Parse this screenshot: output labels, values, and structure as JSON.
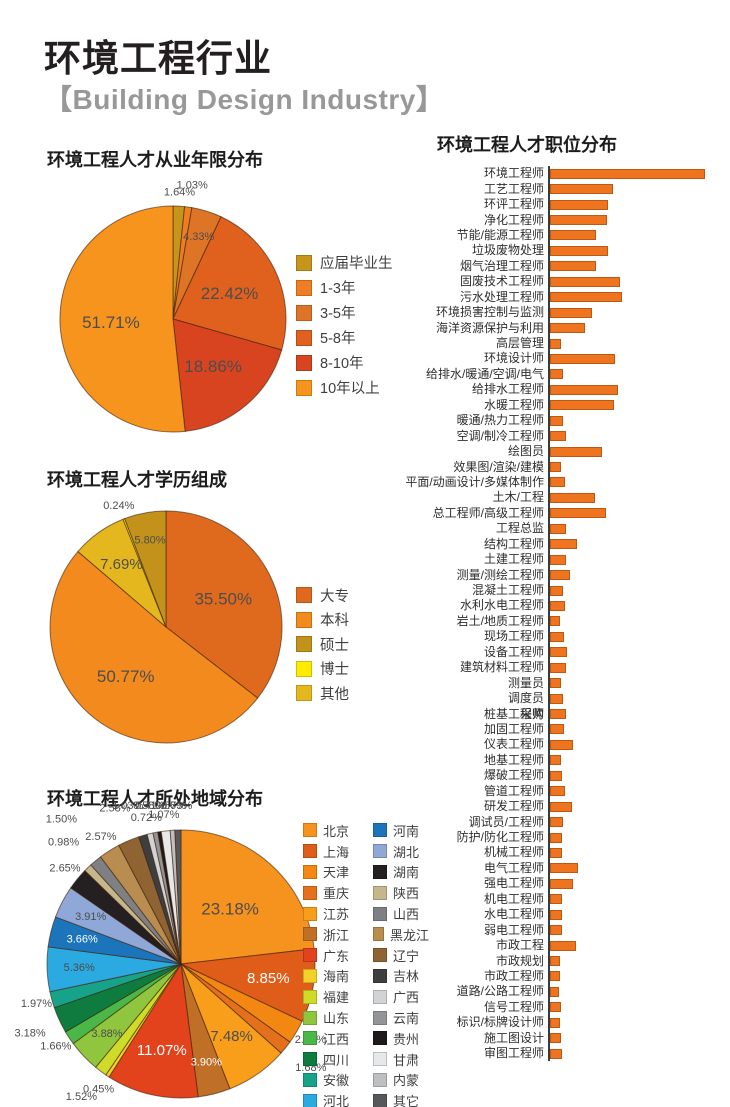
{
  "page": {
    "title": "环境工程行业",
    "subtitle": "【Building Design Industry】"
  },
  "colors": {
    "bar_fill": "#EE7420",
    "bar_border": "#BC5914",
    "axis": "#3A3A3C",
    "label_dark": "#4D4D4F",
    "label_light": "#FFFFFF"
  },
  "chart_data": [
    {
      "id": "experience-pie",
      "type": "pie",
      "title": "环境工程人才从业年限分布",
      "inside_min": 4,
      "inside_label_color_mode": "dark",
      "slices": [
        {
          "label": "应届毕业生",
          "value": 1.64,
          "color": "#C6951C"
        },
        {
          "label": "1-3年",
          "value": 1.03,
          "color": "#F07D23"
        },
        {
          "label": "3-5年",
          "value": 4.33,
          "color": "#DD7426"
        },
        {
          "label": "5-8年",
          "value": 22.42,
          "color": "#E0611E"
        },
        {
          "label": "8-10年",
          "value": 18.86,
          "color": "#D8441F"
        },
        {
          "label": "10年以上",
          "value": 51.71,
          "color": "#F6941E"
        }
      ],
      "legend": [
        {
          "label": "应届毕业生",
          "color": "#C6951C"
        },
        {
          "label": "1-3年",
          "color": "#F07D23"
        },
        {
          "label": "3-5年",
          "color": "#DD7426"
        },
        {
          "label": "5-8年",
          "color": "#E0611E"
        },
        {
          "label": "8-10年",
          "color": "#D8441F"
        },
        {
          "label": "10年以上",
          "color": "#F6941E"
        }
      ]
    },
    {
      "id": "education-pie",
      "type": "pie",
      "title": "环境工程人才学历组成",
      "inside_min": 4,
      "inside_label_color_mode": "dark",
      "slices": [
        {
          "label": "大专",
          "value": 35.5,
          "color": "#DF6A1E"
        },
        {
          "label": "本科",
          "value": 50.77,
          "color": "#F28A1E"
        },
        {
          "label": "其他",
          "value": 7.69,
          "color": "#E5B71E"
        },
        {
          "label": "博士",
          "value": 0.24,
          "color": "#FFEB00"
        },
        {
          "label": "硕士",
          "value": 5.8,
          "color": "#C3921B"
        }
      ],
      "legend": [
        {
          "label": "大专",
          "color": "#DF6A1E"
        },
        {
          "label": "本科",
          "color": "#F28A1E"
        },
        {
          "label": "硕士",
          "color": "#C3921B"
        },
        {
          "label": "博士",
          "color": "#FFEB00"
        },
        {
          "label": "其他",
          "color": "#E5B71E"
        }
      ]
    },
    {
      "id": "region-pie",
      "type": "pie",
      "title": "环境工程人才所处地域分布",
      "inside_min": 3.6,
      "inside_label_color_mode": "auto",
      "slices": [
        {
          "label": "北京",
          "value": 23.18,
          "color": "#F6921E"
        },
        {
          "label": "上海",
          "value": 8.85,
          "color": "#E05C19"
        },
        {
          "label": "天津",
          "value": 2.86,
          "color": "#F28711"
        },
        {
          "label": "重庆",
          "value": 1.68,
          "color": "#E4701C"
        },
        {
          "label": "江苏",
          "value": 7.48,
          "color": "#F89E1B"
        },
        {
          "label": "浙江",
          "value": 3.9,
          "color": "#C06F27"
        },
        {
          "label": "广东",
          "value": 11.07,
          "color": "#E2431C"
        },
        {
          "label": "海南",
          "value": 0.45,
          "color": "#F2D129"
        },
        {
          "label": "福建",
          "value": 1.52,
          "color": "#CEDB28"
        },
        {
          "label": "山东",
          "value": 3.88,
          "color": "#8FC63E"
        },
        {
          "label": "江西",
          "value": 1.66,
          "color": "#4BB748"
        },
        {
          "label": "四川",
          "value": 3.18,
          "color": "#0E7C3F"
        },
        {
          "label": "安徽",
          "value": 1.97,
          "color": "#17A28A"
        },
        {
          "label": "河北",
          "value": 5.36,
          "color": "#2BA9E1"
        },
        {
          "label": "河南",
          "value": 3.66,
          "color": "#1C75BB"
        },
        {
          "label": "湖北",
          "value": 3.91,
          "color": "#8FA8D8"
        },
        {
          "label": "湖南",
          "value": 2.65,
          "color": "#241F20"
        },
        {
          "label": "陕西",
          "value": 0.98,
          "color": "#C5B78B"
        },
        {
          "label": "山西",
          "value": 1.5,
          "color": "#7E8083"
        },
        {
          "label": "黑龙江",
          "value": 2.57,
          "color": "#B98C50"
        },
        {
          "label": "辽宁",
          "value": 2.58,
          "color": "#8F6332"
        },
        {
          "label": "吉林",
          "value": 1.03,
          "color": "#3E3E40"
        },
        {
          "label": "广西",
          "value": 0.72,
          "color": "#D2D3D5"
        },
        {
          "label": "云南",
          "value": 0.58,
          "color": "#929497"
        },
        {
          "label": "贵州",
          "value": 0.41,
          "color": "#1E191A"
        },
        {
          "label": "甘肃",
          "value": 1.07,
          "color": "#E7E8E9"
        },
        {
          "label": "内蒙",
          "value": 0.56,
          "color": "#BDBFC1"
        },
        {
          "label": "其它",
          "value": 0.73,
          "color": "#57585A"
        }
      ],
      "legend": [
        {
          "label": "北京",
          "color": "#F6921E"
        },
        {
          "label": "上海",
          "color": "#E05C19"
        },
        {
          "label": "天津",
          "color": "#F28711"
        },
        {
          "label": "重庆",
          "color": "#E4701C"
        },
        {
          "label": "江苏",
          "color": "#F89E1B"
        },
        {
          "label": "浙江",
          "color": "#C06F27"
        },
        {
          "label": "广东",
          "color": "#E2431C"
        },
        {
          "label": "海南",
          "color": "#F2D129"
        },
        {
          "label": "福建",
          "color": "#CEDB28"
        },
        {
          "label": "山东",
          "color": "#8FC63E"
        },
        {
          "label": "江西",
          "color": "#4BB748"
        },
        {
          "label": "四川",
          "color": "#0E7C3F"
        },
        {
          "label": "安徽",
          "color": "#17A28A"
        },
        {
          "label": "河北",
          "color": "#2BA9E1"
        },
        {
          "label": "河南",
          "color": "#1C75BB"
        },
        {
          "label": "湖北",
          "color": "#8FA8D8"
        },
        {
          "label": "湖南",
          "color": "#241F20"
        },
        {
          "label": "陕西",
          "color": "#C5B78B"
        },
        {
          "label": "山西",
          "color": "#7E8083"
        },
        {
          "label": "黑龙江",
          "color": "#B98C50"
        },
        {
          "label": "辽宁",
          "color": "#8F6332"
        },
        {
          "label": "吉林",
          "color": "#3E3E40"
        },
        {
          "label": "广西",
          "color": "#D2D3D5"
        },
        {
          "label": "云南",
          "color": "#929497"
        },
        {
          "label": "贵州",
          "color": "#1E191A"
        },
        {
          "label": "甘肃",
          "color": "#E7E8E9"
        },
        {
          "label": "内蒙",
          "color": "#BDBFC1"
        },
        {
          "label": "其它",
          "color": "#57585A"
        }
      ]
    },
    {
      "id": "position-bar",
      "type": "bar",
      "title": "环境工程人才职位分布",
      "orientation": "horizontal",
      "value_note": "relative bar lengths in px; no numeric axis labels shown in source",
      "rows": [
        {
          "label": "环境工程师",
          "value": 155
        },
        {
          "label": "工艺工程师",
          "value": 63
        },
        {
          "label": "环评工程师",
          "value": 58
        },
        {
          "label": "净化工程师",
          "value": 57
        },
        {
          "label": "节能/能源工程师",
          "value": 46
        },
        {
          "label": "垃圾废物处理",
          "value": 58
        },
        {
          "label": "烟气治理工程师",
          "value": 46
        },
        {
          "label": "固废技术工程师",
          "value": 70
        },
        {
          "label": "污水处理工程师",
          "value": 72
        },
        {
          "label": "环境损害控制与监测",
          "value": 42
        },
        {
          "label": "海洋资源保护与利用",
          "value": 35
        },
        {
          "label": "高层管理",
          "value": 11
        },
        {
          "label": "环境设计师",
          "value": 65
        },
        {
          "label": "给排水/暖通/空调/电气",
          "value": 13
        },
        {
          "label": "给排水工程师",
          "value": 68
        },
        {
          "label": "水暖工程师",
          "value": 64
        },
        {
          "label": "暖通/热力工程师",
          "value": 13
        },
        {
          "label": "空调/制冷工程师",
          "value": 16
        },
        {
          "label": "绘图员",
          "value": 52
        },
        {
          "label": "效果图/渲染/建模",
          "value": 11
        },
        {
          "label": "平面/动画设计/多媒体制作",
          "value": 15
        },
        {
          "label": "土木/工程",
          "value": 45
        },
        {
          "label": "总工程师/高级工程师",
          "value": 56
        },
        {
          "label": "工程总监",
          "value": 16
        },
        {
          "label": "结构工程师",
          "value": 27
        },
        {
          "label": "土建工程师",
          "value": 16
        },
        {
          "label": "测量/测绘工程师",
          "value": 20
        },
        {
          "label": "混凝土工程师",
          "value": 13
        },
        {
          "label": "水利水电工程师",
          "value": 15
        },
        {
          "label": "岩土/地质工程师",
          "value": 10
        },
        {
          "label": "现场工程师",
          "value": 14
        },
        {
          "label": "设备工程师",
          "value": 17
        },
        {
          "label": "建筑材料工程师",
          "value": 16
        },
        {
          "label": "测量员",
          "value": 11
        },
        {
          "label": "调度员",
          "value": 13
        },
        {
          "label": "桩基工程师",
          "value": 16,
          "overlap": "采购"
        },
        {
          "label": "加固工程师",
          "value": 14
        },
        {
          "label": "仪表工程师",
          "value": 23
        },
        {
          "label": "地基工程师",
          "value": 11
        },
        {
          "label": "爆破工程师",
          "value": 12
        },
        {
          "label": "管道工程师",
          "value": 15
        },
        {
          "label": "研发工程师",
          "value": 22
        },
        {
          "label": "调试员/工程师",
          "value": 13
        },
        {
          "label": "防护/防化工程师",
          "value": 12
        },
        {
          "label": "机械工程师",
          "value": 12
        },
        {
          "label": "电气工程师",
          "value": 28
        },
        {
          "label": "强电工程师",
          "value": 23
        },
        {
          "label": "机电工程师",
          "value": 12
        },
        {
          "label": "水电工程师",
          "value": 12
        },
        {
          "label": "弱电工程师",
          "value": 12
        },
        {
          "label": "市政工程",
          "value": 26
        },
        {
          "label": "市政规划",
          "value": 10
        },
        {
          "label": "市政工程师",
          "value": 10
        },
        {
          "label": "道路/公路工程师",
          "value": 9
        },
        {
          "label": "信号工程师",
          "value": 11
        },
        {
          "label": "标识/标牌设计师",
          "value": 10
        },
        {
          "label": "施工图设计",
          "value": 11
        },
        {
          "label": "审图工程师",
          "value": 12
        }
      ]
    }
  ]
}
